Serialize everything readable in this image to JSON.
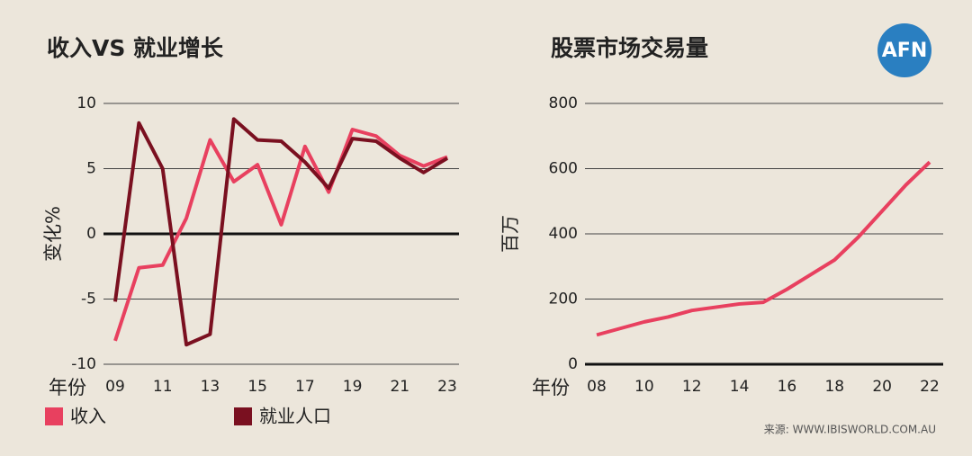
{
  "chart_data": [
    {
      "type": "line",
      "title": "收入VS 就业增长",
      "y_label": "变化%",
      "x_label": "年份",
      "categories": [
        "09",
        null,
        "11",
        null,
        "13",
        null,
        "15",
        null,
        "17",
        null,
        "19",
        null,
        "21",
        null,
        "23"
      ],
      "series": [
        {
          "name": "收入",
          "color": "#e8405f",
          "values": [
            -8.2,
            -2.6,
            -2.4,
            1.2,
            7.2,
            4.0,
            5.3,
            0.7,
            6.7,
            3.2,
            8.0,
            7.5,
            6.0,
            5.2,
            5.9
          ]
        },
        {
          "name": "就业人口",
          "color": "#7a1020",
          "values": [
            -5.2,
            8.5,
            5.0,
            -8.5,
            -7.7,
            8.8,
            7.2,
            7.1,
            5.5,
            3.5,
            7.3,
            7.1,
            5.8,
            4.7,
            5.8
          ]
        }
      ],
      "ylim": [
        -10,
        10
      ],
      "yticks": [
        -10,
        -5,
        0,
        5,
        10
      ],
      "grid": true,
      "legend": "bottom"
    },
    {
      "type": "line",
      "title": "股票市场交易量",
      "y_label": "百万",
      "x_label": "年份",
      "categories": [
        "08",
        null,
        "10",
        null,
        "12",
        null,
        "14",
        null,
        "16",
        null,
        "18",
        null,
        "20",
        null,
        "22"
      ],
      "series": [
        {
          "color": "#e8405f",
          "values": [
            90,
            110,
            130,
            145,
            165,
            175,
            185,
            190,
            230,
            275,
            320,
            390,
            470,
            550,
            620
          ]
        }
      ],
      "ylim": [
        0,
        800
      ],
      "yticks": [
        0,
        200,
        400,
        600,
        800
      ],
      "grid": true
    }
  ],
  "source": "来源: WWW.IBISWORLD.COM.AU",
  "logo": "AFN"
}
